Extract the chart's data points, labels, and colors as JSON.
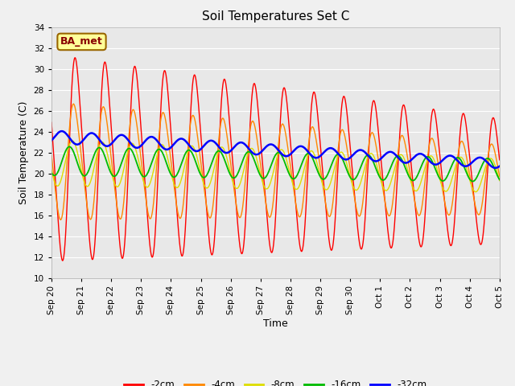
{
  "title": "Soil Temperatures Set C",
  "xlabel": "Time",
  "ylabel": "Soil Temperature (C)",
  "ylim": [
    10,
    34
  ],
  "fig_facecolor": "#f0f0f0",
  "ax_facecolor": "#e8e8e8",
  "grid_color": "#ffffff",
  "annotation_text": "BA_met",
  "annotation_facecolor": "#ffff99",
  "annotation_edgecolor": "#996600",
  "annotation_textcolor": "#880000",
  "legend_entries": [
    "-2cm",
    "-4cm",
    "-8cm",
    "-16cm",
    "-32cm"
  ],
  "line_colors": [
    "#ff0000",
    "#ff8800",
    "#dddd00",
    "#00bb00",
    "#0000ff"
  ],
  "line_widths": [
    1.0,
    1.0,
    1.0,
    1.3,
    1.8
  ],
  "x_tick_labels": [
    "Sep 20",
    "Sep 21",
    "Sep 22",
    "Sep 23",
    "Sep 24",
    "Sep 25",
    "Sep 26",
    "Sep 27",
    "Sep 28",
    "Sep 29",
    "Sep 30",
    "Oct 1",
    "Oct 2",
    "Oct 3",
    "Oct 4",
    "Oct 5"
  ]
}
